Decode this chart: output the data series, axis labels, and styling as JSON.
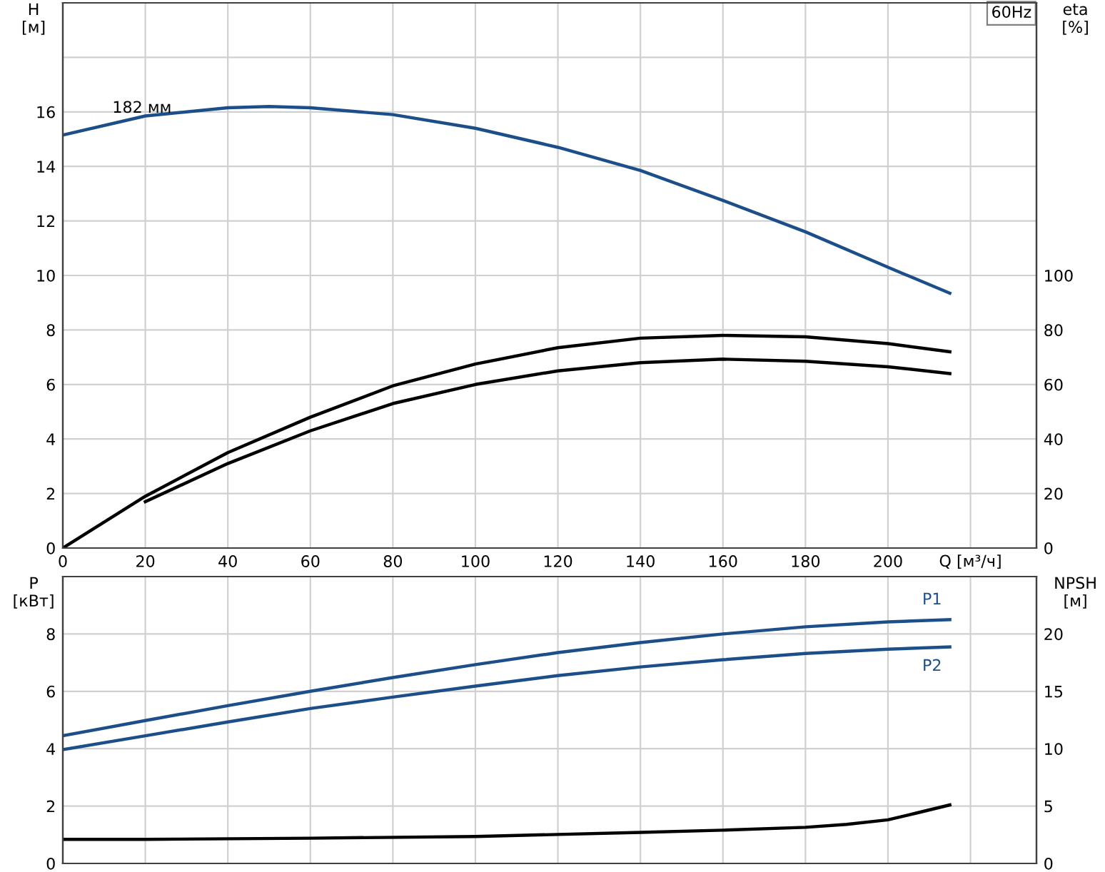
{
  "chart_data": [
    {
      "type": "line",
      "title": "60Hz",
      "xlabel": "Q [м³/ч]",
      "ylabel": "H\n[м]",
      "y2label": "eta\n[%]",
      "xlim": [
        0,
        236
      ],
      "xticks": [
        0,
        20,
        40,
        60,
        80,
        100,
        120,
        140,
        160,
        180,
        200,
        {
          "value": 220,
          "label": null
        }
      ],
      "ylim": [
        0,
        20
      ],
      "yticks": [
        0,
        2,
        4,
        6,
        8,
        10,
        12,
        14,
        16,
        {
          "value": 18,
          "label": null
        }
      ],
      "y2lim": [
        0,
        200
      ],
      "y2ticks": [
        0,
        20,
        40,
        60,
        80,
        100
      ],
      "grid": true,
      "legend": false,
      "series": [
        {
          "name": "182 мм",
          "color": "#1c4f8a",
          "x": [
            0,
            20,
            40,
            50,
            60,
            80,
            100,
            120,
            140,
            160,
            180,
            200,
            215
          ],
          "values": [
            15.15,
            15.85,
            16.15,
            16.2,
            16.15,
            15.9,
            15.4,
            14.7,
            13.85,
            12.75,
            11.6,
            10.3,
            9.35
          ]
        },
        {
          "color": "#000000",
          "axis": "y2",
          "x": [
            0,
            20,
            40,
            60,
            80,
            100,
            120,
            140,
            160,
            180,
            200,
            215
          ],
          "values": [
            0,
            19,
            35,
            48,
            59.5,
            67.5,
            73.5,
            77,
            78,
            77.5,
            75,
            72
          ]
        },
        {
          "color": "#000000",
          "axis": "y2",
          "x": [
            20,
            40,
            60,
            80,
            100,
            120,
            140,
            160,
            180,
            200,
            215
          ],
          "values": [
            17,
            31,
            43,
            53,
            60,
            65,
            68,
            69.3,
            68.5,
            66.5,
            64
          ]
        }
      ]
    },
    {
      "type": "line",
      "ylabel": "P\n[кВт]",
      "y2label": "NPSH\n[м]",
      "tick_labels": "y",
      "xlim": [
        0,
        236
      ],
      "xticks": [
        0,
        20,
        40,
        60,
        80,
        100,
        120,
        140,
        160,
        180,
        200,
        220
      ],
      "ylim": [
        0,
        10
      ],
      "yticks": [
        0,
        2,
        4,
        6,
        8,
        {
          "value": 10,
          "label": null
        }
      ],
      "y2lim": [
        0,
        25
      ],
      "y2ticks": [
        0,
        5,
        10,
        15,
        20
      ],
      "grid": true,
      "legend": false,
      "series": [
        {
          "name": "P1",
          "color": "#1c4f8a",
          "x": [
            0,
            20,
            40,
            60,
            80,
            100,
            120,
            140,
            160,
            180,
            200,
            215
          ],
          "values": [
            4.45,
            4.98,
            5.5,
            6.0,
            6.48,
            6.93,
            7.35,
            7.7,
            8.0,
            8.25,
            8.42,
            8.5
          ]
        },
        {
          "name": "P2",
          "color": "#1c4f8a",
          "x": [
            0,
            20,
            40,
            60,
            80,
            100,
            120,
            140,
            160,
            180,
            200,
            215
          ],
          "values": [
            3.97,
            4.45,
            4.93,
            5.4,
            5.8,
            6.18,
            6.55,
            6.85,
            7.1,
            7.32,
            7.47,
            7.55
          ]
        },
        {
          "color": "#000000",
          "axis": "y2",
          "x": [
            0,
            20,
            60,
            100,
            140,
            160,
            180,
            190,
            200,
            207,
            215
          ],
          "values": [
            2.1,
            2.1,
            2.2,
            2.35,
            2.7,
            2.9,
            3.15,
            3.4,
            3.8,
            4.4,
            5.1
          ]
        }
      ]
    }
  ]
}
